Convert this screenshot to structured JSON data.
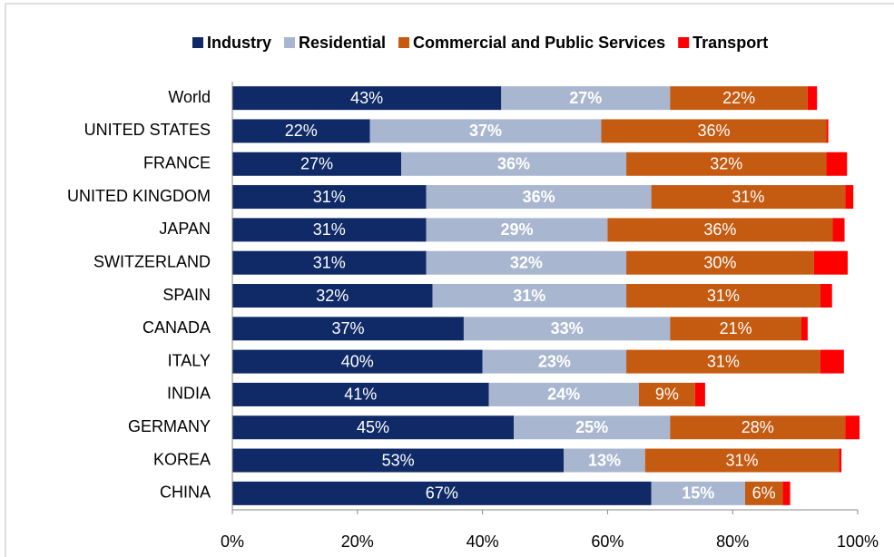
{
  "chart_data": {
    "type": "stacked-bar-horizontal",
    "categories": [
      "World",
      "UNITED STATES",
      "FRANCE",
      "UNITED KINGDOM",
      "JAPAN",
      "SWITZERLAND",
      "SPAIN",
      "CANADA",
      "ITALY",
      "INDIA",
      "GERMANY",
      "KOREA",
      "CHINA"
    ],
    "series": [
      {
        "name": "Industry",
        "color": "#0f2a66",
        "values": [
          43,
          22,
          27,
          31,
          31,
          31,
          32,
          37,
          40,
          41,
          45,
          53,
          67
        ],
        "value_labels": [
          "43%",
          "22%",
          "27%",
          "31%",
          "31%",
          "31%",
          "32%",
          "37%",
          "40%",
          "41%",
          "45%",
          "53%",
          "67%"
        ]
      },
      {
        "name": "Residential",
        "color": "#a9b6d0",
        "values": [
          27,
          37,
          36,
          36,
          29,
          32,
          31,
          33,
          23,
          24,
          25,
          13,
          15
        ],
        "value_labels": [
          "27%",
          "37%",
          "36%",
          "36%",
          "29%",
          "32%",
          "31%",
          "33%",
          "23%",
          "24%",
          "25%",
          "13%",
          "15%"
        ]
      },
      {
        "name": "Commercial and Public Services",
        "color": "#c55a11",
        "values": [
          22,
          36,
          32,
          31,
          36,
          30,
          31,
          21,
          31,
          9,
          28,
          31,
          6
        ],
        "value_labels": [
          "22%",
          "36%",
          "32%",
          "31%",
          "36%",
          "30%",
          "31%",
          "21%",
          "31%",
          "9%",
          "28%",
          "31%",
          "6%"
        ]
      },
      {
        "name": "Transport",
        "color": "#ff0000",
        "values": [
          1.5,
          0.3,
          3.3,
          1.3,
          1.9,
          5.4,
          1.9,
          1.0,
          3.8,
          1.6,
          2.3,
          0.4,
          1.2
        ]
      }
    ],
    "xlim": [
      0,
      100
    ],
    "xticks": [
      {
        "value": 0,
        "label": "0%"
      },
      {
        "value": 20,
        "label": "20%"
      },
      {
        "value": 40,
        "label": "40%"
      },
      {
        "value": 60,
        "label": "60%"
      },
      {
        "value": 80,
        "label": "80%"
      },
      {
        "value": 100,
        "label": "100%"
      }
    ]
  }
}
